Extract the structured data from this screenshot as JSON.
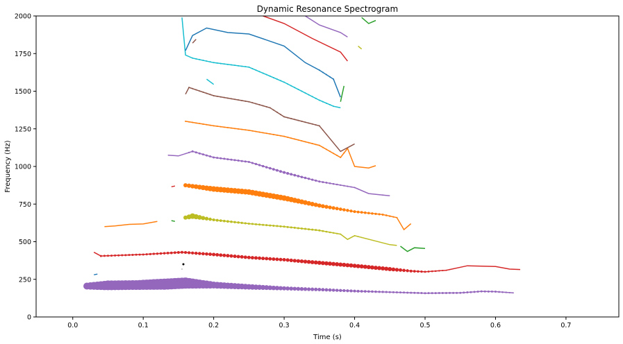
{
  "chart_data": {
    "type": "scatter",
    "title": "Dynamic Resonance Spectrogram",
    "xlabel": "Time (s)",
    "ylabel": "Frequency (Hz)",
    "xlim": [
      -0.052,
      0.775
    ],
    "ylim": [
      0,
      2000
    ],
    "x_ticks": [
      0.0,
      0.1,
      0.2,
      0.3,
      0.4,
      0.5,
      0.6,
      0.7
    ],
    "y_ticks": [
      0,
      250,
      500,
      750,
      1000,
      1250,
      1500,
      1750,
      2000
    ],
    "grid": false,
    "legend": "none",
    "tracks": [
      {
        "color": "#9467bd",
        "points": [
          [
            0.02,
            205,
            5
          ],
          [
            0.05,
            210,
            7
          ],
          [
            0.09,
            212,
            7
          ],
          [
            0.13,
            218,
            8
          ],
          [
            0.16,
            225,
            8
          ],
          [
            0.2,
            212,
            5
          ],
          [
            0.25,
            200,
            4
          ],
          [
            0.3,
            190,
            3
          ],
          [
            0.35,
            182,
            2.5
          ],
          [
            0.4,
            172,
            2
          ],
          [
            0.45,
            165,
            1.5
          ],
          [
            0.5,
            158,
            1.5
          ],
          [
            0.55,
            160,
            1.5
          ],
          [
            0.58,
            170,
            1.5
          ],
          [
            0.6,
            168,
            1.5
          ],
          [
            0.625,
            160,
            1
          ]
        ]
      },
      {
        "color": "#d62728",
        "points": [
          [
            0.03,
            430,
            0
          ],
          [
            0.04,
            405,
            1.5
          ],
          [
            0.1,
            415,
            1.5
          ],
          [
            0.155,
            430,
            2
          ],
          [
            0.2,
            415,
            2.5
          ],
          [
            0.25,
            395,
            2.5
          ],
          [
            0.3,
            380,
            2.5
          ],
          [
            0.35,
            360,
            3
          ],
          [
            0.4,
            340,
            3
          ],
          [
            0.45,
            318,
            3
          ],
          [
            0.48,
            305,
            2
          ],
          [
            0.5,
            300,
            1.5
          ],
          [
            0.53,
            310,
            1
          ],
          [
            0.56,
            340,
            0
          ],
          [
            0.6,
            335,
            0
          ],
          [
            0.62,
            318,
            0
          ],
          [
            0.635,
            315,
            0
          ]
        ]
      },
      {
        "color": "#1f77b4",
        "points": [
          [
            0.03,
            280,
            0
          ],
          [
            0.035,
            285,
            0
          ]
        ]
      },
      {
        "color": "#ff7f0e",
        "points": [
          [
            0.045,
            600,
            0
          ],
          [
            0.06,
            605,
            0
          ],
          [
            0.08,
            615,
            0
          ],
          [
            0.1,
            618,
            0
          ],
          [
            0.12,
            635,
            0
          ]
        ]
      },
      {
        "color": "#2ca02c",
        "points": [
          [
            0.14,
            640,
            0
          ],
          [
            0.145,
            635,
            0
          ]
        ]
      },
      {
        "color": "#bcbd22",
        "points": [
          [
            0.16,
            660,
            3
          ],
          [
            0.17,
            670,
            4
          ],
          [
            0.2,
            645,
            2
          ],
          [
            0.25,
            620,
            1.5
          ],
          [
            0.3,
            600,
            1.5
          ],
          [
            0.35,
            575,
            1.5
          ],
          [
            0.38,
            550,
            1
          ],
          [
            0.39,
            515,
            0
          ],
          [
            0.4,
            540,
            1
          ],
          [
            0.45,
            480,
            0
          ],
          [
            0.46,
            475,
            0
          ]
        ]
      },
      {
        "color": "#2ca02c",
        "points": [
          [
            0.465,
            470,
            0
          ],
          [
            0.475,
            435,
            0
          ],
          [
            0.485,
            460,
            0
          ],
          [
            0.5,
            455,
            0
          ]
        ]
      },
      {
        "color": "#d62728",
        "points": [
          [
            0.14,
            865,
            0
          ],
          [
            0.145,
            870,
            0
          ]
        ]
      },
      {
        "color": "#ff7f0e",
        "points": [
          [
            0.16,
            875,
            3
          ],
          [
            0.2,
            850,
            4
          ],
          [
            0.25,
            830,
            4
          ],
          [
            0.3,
            790,
            4
          ],
          [
            0.35,
            740,
            3
          ],
          [
            0.4,
            700,
            2
          ],
          [
            0.44,
            680,
            1.5
          ],
          [
            0.46,
            660,
            1
          ],
          [
            0.47,
            580,
            0
          ],
          [
            0.48,
            620,
            0
          ]
        ]
      },
      {
        "color": "#9467bd",
        "points": [
          [
            0.135,
            1075,
            0
          ],
          [
            0.15,
            1070,
            0
          ],
          [
            0.17,
            1100,
            1.5
          ],
          [
            0.2,
            1060,
            1.5
          ],
          [
            0.25,
            1030,
            1.5
          ],
          [
            0.3,
            960,
            2
          ],
          [
            0.35,
            900,
            1.5
          ],
          [
            0.4,
            860,
            1
          ],
          [
            0.42,
            820,
            0
          ],
          [
            0.44,
            810,
            1
          ],
          [
            0.45,
            805,
            0
          ]
        ]
      },
      {
        "color": "#ff7f0e",
        "points": [
          [
            0.16,
            1300,
            1
          ],
          [
            0.2,
            1270,
            1
          ],
          [
            0.25,
            1240,
            1
          ],
          [
            0.3,
            1200,
            1
          ],
          [
            0.35,
            1140,
            1
          ],
          [
            0.38,
            1060,
            1
          ],
          [
            0.39,
            1120,
            1
          ],
          [
            0.4,
            1000,
            0
          ],
          [
            0.42,
            990,
            0
          ],
          [
            0.43,
            1005,
            0
          ]
        ]
      },
      {
        "color": "#8c564b",
        "points": [
          [
            0.16,
            1480,
            0
          ],
          [
            0.165,
            1525,
            1
          ],
          [
            0.2,
            1470,
            1
          ],
          [
            0.25,
            1430,
            1
          ],
          [
            0.28,
            1390,
            1
          ],
          [
            0.3,
            1330,
            1
          ],
          [
            0.35,
            1270,
            1
          ],
          [
            0.38,
            1100,
            0
          ],
          [
            0.4,
            1150,
            0
          ]
        ]
      },
      {
        "color": "#17becf",
        "points": [
          [
            0.155,
            1990,
            0
          ],
          [
            0.16,
            1740,
            0
          ],
          [
            0.17,
            1720,
            1
          ],
          [
            0.2,
            1690,
            1
          ],
          [
            0.25,
            1660,
            1
          ],
          [
            0.3,
            1560,
            1
          ],
          [
            0.35,
            1440,
            1
          ],
          [
            0.37,
            1400,
            1
          ],
          [
            0.38,
            1390,
            0
          ]
        ]
      },
      {
        "color": "#17becf",
        "points": [
          [
            0.19,
            1580,
            0
          ],
          [
            0.2,
            1545,
            0
          ]
        ]
      },
      {
        "color": "#1f77b4",
        "points": [
          [
            0.16,
            1770,
            0
          ],
          [
            0.17,
            1870,
            0
          ],
          [
            0.19,
            1920,
            0
          ],
          [
            0.22,
            1890,
            0
          ],
          [
            0.25,
            1880,
            0
          ],
          [
            0.3,
            1800,
            0
          ],
          [
            0.33,
            1690,
            0
          ],
          [
            0.35,
            1640,
            1
          ],
          [
            0.37,
            1580,
            1
          ],
          [
            0.38,
            1460,
            0
          ]
        ]
      },
      {
        "color": "#8c564b",
        "points": [
          [
            0.17,
            1820,
            0
          ],
          [
            0.175,
            1845,
            0
          ]
        ]
      },
      {
        "color": "#d62728",
        "points": [
          [
            0.27,
            2000,
            0
          ],
          [
            0.3,
            1950,
            0
          ],
          [
            0.34,
            1850,
            0
          ],
          [
            0.38,
            1760,
            0
          ],
          [
            0.39,
            1700,
            0
          ]
        ]
      },
      {
        "color": "#9467bd",
        "points": [
          [
            0.33,
            2000,
            0
          ],
          [
            0.35,
            1940,
            0
          ],
          [
            0.38,
            1890,
            0
          ],
          [
            0.39,
            1860,
            0
          ]
        ]
      },
      {
        "color": "#2ca02c",
        "points": [
          [
            0.38,
            1430,
            0
          ],
          [
            0.385,
            1535,
            0
          ]
        ]
      },
      {
        "color": "#bcbd22",
        "points": [
          [
            0.405,
            1800,
            0
          ],
          [
            0.41,
            1780,
            0
          ]
        ]
      },
      {
        "color": "#2ca02c",
        "points": [
          [
            0.41,
            1990,
            0
          ],
          [
            0.42,
            1950,
            0
          ],
          [
            0.43,
            1970,
            0
          ]
        ]
      },
      {
        "color": "#000000",
        "points": [
          [
            0.157,
            350,
            1.5
          ]
        ]
      },
      {
        "color": "#000000",
        "points": [
          [
            0.155,
            318,
            0.5
          ]
        ]
      }
    ]
  }
}
